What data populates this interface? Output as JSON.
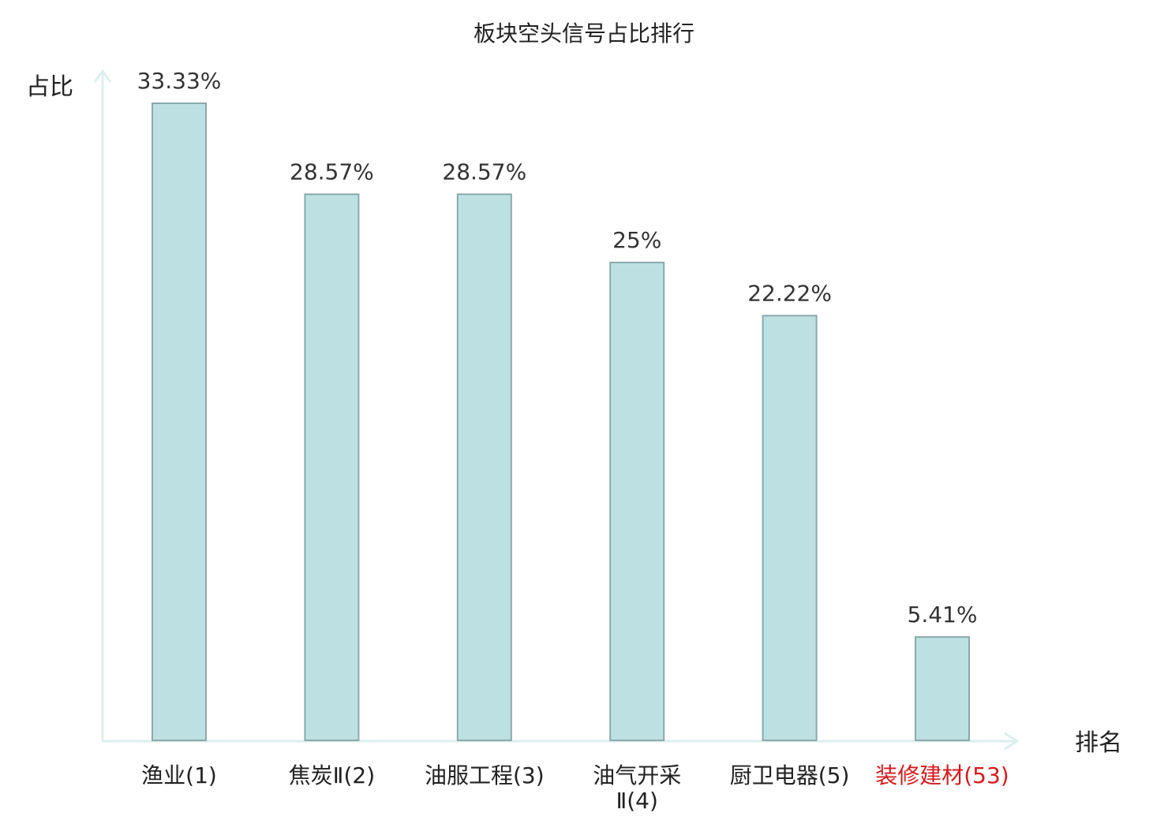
{
  "chart_data": {
    "type": "bar",
    "title": "板块空头信号占比排行",
    "ylabel": "占比",
    "xlabel": "排名",
    "categories": [
      "渔业(1)",
      "焦炭Ⅱ(2)",
      "油服工程(3)",
      "油气开采Ⅱ(4)",
      "厨卫电器(5)",
      "装修建材(53)"
    ],
    "category_lines": [
      [
        "渔业(1)"
      ],
      [
        "焦炭Ⅱ(2)"
      ],
      [
        "油服工程(3)"
      ],
      [
        "油气开采",
        "Ⅱ(4)"
      ],
      [
        "厨卫电器(5)"
      ],
      [
        "装修建材(53)"
      ]
    ],
    "values": [
      33.33,
      28.57,
      28.57,
      25,
      22.22,
      5.41
    ],
    "value_labels": [
      "33.33%",
      "28.57%",
      "28.57%",
      "25%",
      "22.22%",
      "5.41%"
    ],
    "highlight_index": 5,
    "ylim": [
      0,
      33.33
    ],
    "grid": false,
    "colors": {
      "bar_fill": "#bde1e3",
      "bar_stroke": "#8aa9ab",
      "axis": "#dcefee",
      "highlight_text": "#d7191c",
      "text": "#222222"
    }
  }
}
